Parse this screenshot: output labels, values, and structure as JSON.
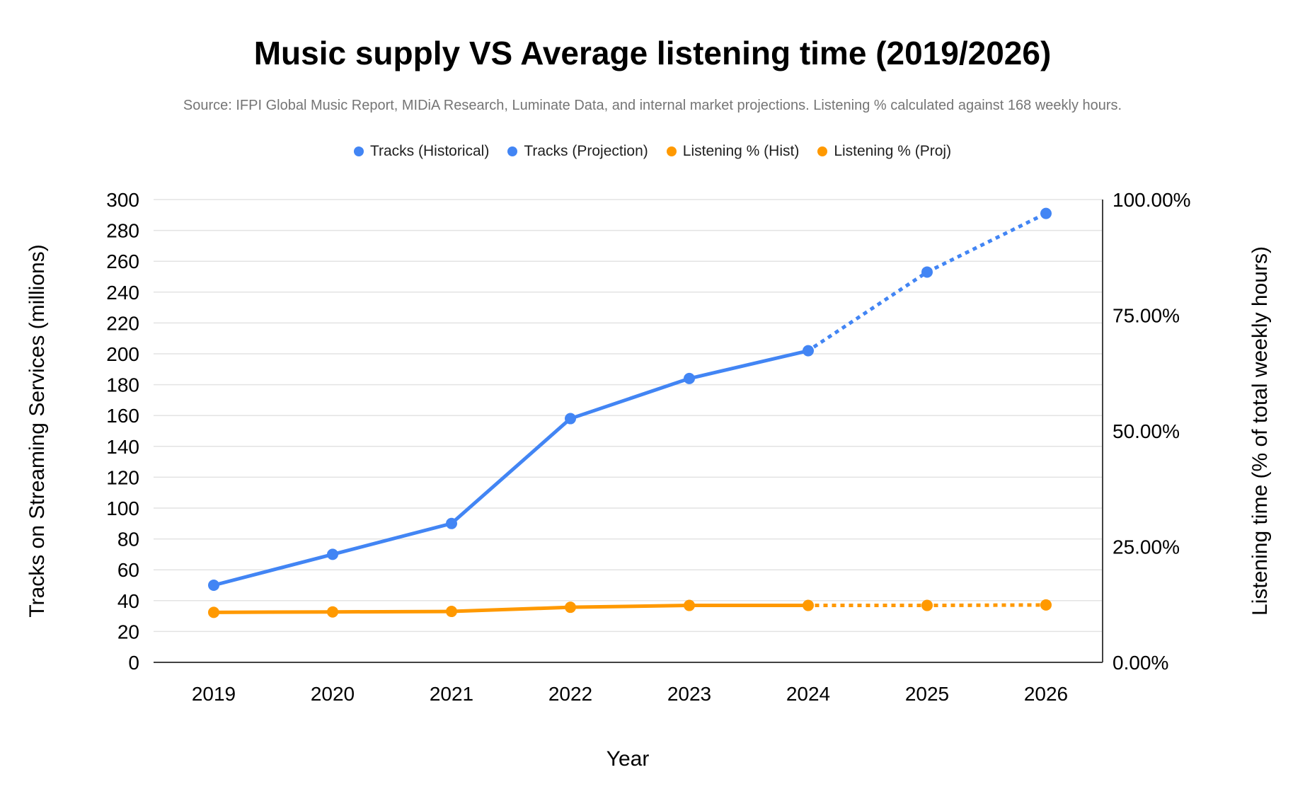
{
  "title": "Music supply VS Average listening time (2019/2026)",
  "subtitle": "Source: IFPI Global Music Report, MIDiA Research, Luminate Data, and internal market projections. Listening % calculated against 168 weekly hours.",
  "colors": {
    "blue": "#4285F4",
    "orange": "#FF9900",
    "grid": "#E3E3E3",
    "axis": "#424242",
    "tick_text": "#000000",
    "subtitle_text": "#757575"
  },
  "legend": {
    "items": [
      {
        "label": "Tracks (Historical)",
        "color": "#4285F4",
        "marker": "circle-icon"
      },
      {
        "label": "Tracks (Projection)",
        "color": "#4285F4",
        "marker": "circle-icon"
      },
      {
        "label": "Listening % (Hist)",
        "color": "#FF9900",
        "marker": "circle-icon"
      },
      {
        "label": "Listening % (Proj)",
        "color": "#FF9900",
        "marker": "circle-icon"
      }
    ]
  },
  "chart_data": {
    "type": "line",
    "x": [
      2019,
      2020,
      2021,
      2022,
      2023,
      2024,
      2025,
      2026
    ],
    "xlabel": "Year",
    "grid": true,
    "legend_position": "top",
    "left_axis": {
      "label": "Tracks on Streaming Services (millions)",
      "min": 0,
      "max": 300,
      "tick_step": 20,
      "tick_labels": [
        "0",
        "20",
        "40",
        "60",
        "80",
        "100",
        "120",
        "140",
        "160",
        "180",
        "200",
        "220",
        "240",
        "260",
        "280",
        "300"
      ]
    },
    "right_axis": {
      "label": "Listening time (% of total weekly hours)",
      "min": 0,
      "max": 100,
      "ticks": [
        {
          "label": "0.00%",
          "value": 0
        },
        {
          "label": "25.00%",
          "value": 25
        },
        {
          "label": "50.00%",
          "value": 50
        },
        {
          "label": "75.00%",
          "value": 75
        },
        {
          "label": "100.00%",
          "value": 100
        }
      ]
    },
    "series": [
      {
        "name": "Tracks (Historical)",
        "axis": "left",
        "style": "solid",
        "color": "#4285F4",
        "x": [
          2019,
          2020,
          2021,
          2022,
          2023,
          2024
        ],
        "values": [
          50,
          70,
          90,
          158,
          184,
          202
        ]
      },
      {
        "name": "Tracks (Projection)",
        "axis": "left",
        "style": "dotted",
        "color": "#4285F4",
        "x": [
          2024,
          2025,
          2026
        ],
        "values": [
          202,
          253,
          291
        ]
      },
      {
        "name": "Listening % (Hist)",
        "axis": "right",
        "style": "solid",
        "color": "#FF9900",
        "x": [
          2019,
          2020,
          2021,
          2022,
          2023,
          2024
        ],
        "values": [
          10.8,
          10.9,
          11.0,
          11.9,
          12.3,
          12.3
        ]
      },
      {
        "name": "Listening % (Proj)",
        "axis": "right",
        "style": "dotted",
        "color": "#FF9900",
        "x": [
          2024,
          2025,
          2026
        ],
        "values": [
          12.3,
          12.3,
          12.4
        ]
      }
    ]
  }
}
